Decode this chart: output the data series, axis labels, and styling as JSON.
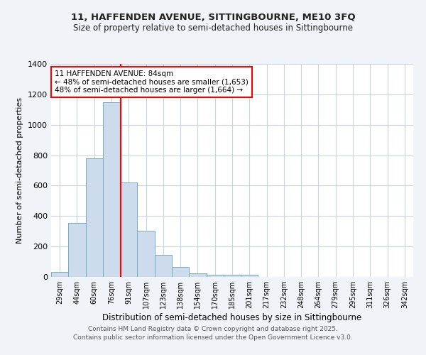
{
  "title_line1": "11, HAFFENDEN AVENUE, SITTINGBOURNE, ME10 3FQ",
  "title_line2": "Size of property relative to semi-detached houses in Sittingbourne",
  "xlabel": "Distribution of semi-detached houses by size in Sittingbourne",
  "ylabel": "Number of semi-detached properties",
  "categories": [
    "29sqm",
    "44sqm",
    "60sqm",
    "76sqm",
    "91sqm",
    "107sqm",
    "123sqm",
    "138sqm",
    "154sqm",
    "170sqm",
    "185sqm",
    "201sqm",
    "217sqm",
    "232sqm",
    "248sqm",
    "264sqm",
    "279sqm",
    "295sqm",
    "311sqm",
    "326sqm",
    "342sqm"
  ],
  "values": [
    35,
    355,
    780,
    1150,
    620,
    305,
    145,
    65,
    25,
    15,
    12,
    12,
    0,
    0,
    0,
    0,
    0,
    0,
    0,
    0,
    0
  ],
  "bar_color": "#cddcec",
  "bar_edge_color": "#7aaac8",
  "red_line_x": 3.53,
  "annotation_title": "11 HAFFENDEN AVENUE: 84sqm",
  "annotation_line2": "← 48% of semi-detached houses are smaller (1,653)",
  "annotation_line3": "48% of semi-detached houses are larger (1,664) →",
  "ylim": [
    0,
    1400
  ],
  "yticks": [
    0,
    200,
    400,
    600,
    800,
    1000,
    1200,
    1400
  ],
  "footnote_line1": "Contains HM Land Registry data © Crown copyright and database right 2025.",
  "footnote_line2": "Contains public sector information licensed under the Open Government Licence v3.0.",
  "bg_color": "#f0f4f8",
  "plot_bg_color": "#ffffff",
  "grid_color": "#c8d4e0"
}
